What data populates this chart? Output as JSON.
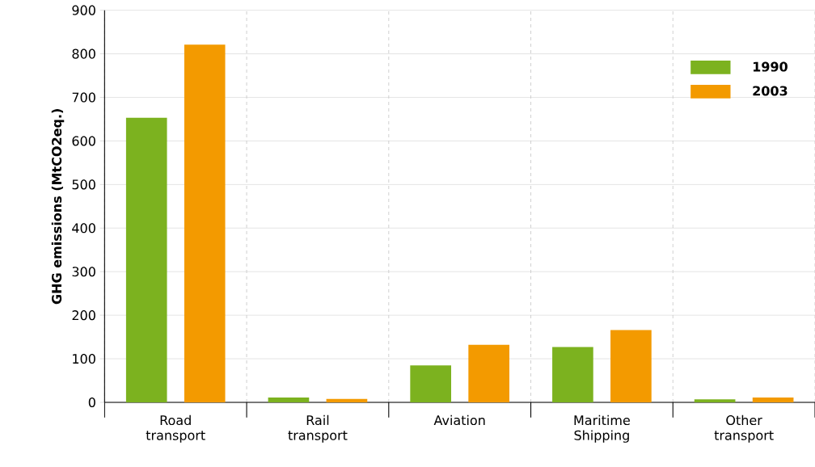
{
  "chart_data": {
    "type": "bar",
    "ylabel": "GHG emissions (MtCO2eq.)",
    "categories": [
      "Road\ntransport",
      "Rail\ntransport",
      "Aviation",
      "Maritime\nShipping",
      "Other\ntransport"
    ],
    "series": [
      {
        "name": "1990",
        "color": "#7cb21f",
        "values": [
          653,
          11,
          85,
          127,
          7
        ]
      },
      {
        "name": "2003",
        "color": "#f39a00",
        "values": [
          821,
          8,
          132,
          166,
          11
        ]
      }
    ],
    "ylim": [
      0,
      900
    ],
    "yticks": [
      0,
      100,
      200,
      300,
      400,
      500,
      600,
      700,
      800,
      900
    ],
    "grid": "y",
    "legend": "top right"
  }
}
